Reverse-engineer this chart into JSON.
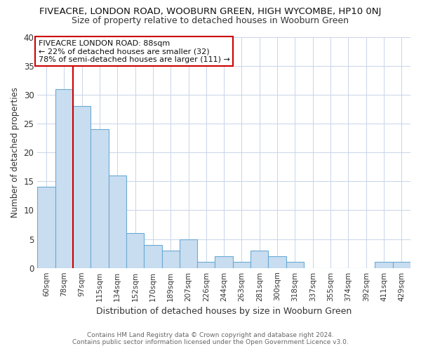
{
  "title": "FIVEACRE, LONDON ROAD, WOOBURN GREEN, HIGH WYCOMBE, HP10 0NJ",
  "subtitle": "Size of property relative to detached houses in Wooburn Green",
  "xlabel": "Distribution of detached houses by size in Wooburn Green",
  "ylabel": "Number of detached properties",
  "bar_labels": [
    "60sqm",
    "78sqm",
    "97sqm",
    "115sqm",
    "134sqm",
    "152sqm",
    "170sqm",
    "189sqm",
    "207sqm",
    "226sqm",
    "244sqm",
    "263sqm",
    "281sqm",
    "300sqm",
    "318sqm",
    "337sqm",
    "355sqm",
    "374sqm",
    "392sqm",
    "411sqm",
    "429sqm"
  ],
  "bar_values": [
    14,
    31,
    28,
    24,
    16,
    6,
    4,
    3,
    5,
    1,
    2,
    1,
    3,
    2,
    1,
    0,
    0,
    0,
    0,
    1,
    1
  ],
  "bar_color": "#c9ddf0",
  "bar_edge_color": "#6aaad4",
  "vline_color": "#cc0000",
  "annotation_text": "FIVEACRE LONDON ROAD: 88sqm\n← 22% of detached houses are smaller (32)\n78% of semi-detached houses are larger (111) →",
  "annotation_box_edge": "#cc0000",
  "ylim": [
    0,
    40
  ],
  "yticks": [
    0,
    5,
    10,
    15,
    20,
    25,
    30,
    35,
    40
  ],
  "footer_line1": "Contains HM Land Registry data © Crown copyright and database right 2024.",
  "footer_line2": "Contains public sector information licensed under the Open Government Licence v3.0.",
  "bg_color": "#ffffff",
  "grid_color": "#c8d4e8"
}
